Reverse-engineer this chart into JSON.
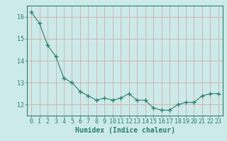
{
  "x": [
    0,
    1,
    2,
    3,
    4,
    5,
    6,
    7,
    8,
    9,
    10,
    11,
    12,
    13,
    14,
    15,
    16,
    17,
    18,
    19,
    20,
    21,
    22,
    23
  ],
  "y": [
    16.2,
    15.7,
    14.7,
    14.2,
    13.2,
    13.0,
    12.6,
    12.4,
    12.2,
    12.3,
    12.2,
    12.3,
    12.5,
    12.2,
    12.2,
    11.85,
    11.75,
    11.75,
    12.0,
    12.1,
    12.1,
    12.4,
    12.5,
    12.5
  ],
  "xlabel": "Humidex (Indice chaleur)",
  "xlim": [
    -0.5,
    23.5
  ],
  "ylim": [
    11.5,
    16.5
  ],
  "yticks": [
    12,
    13,
    14,
    15,
    16
  ],
  "xticks": [
    0,
    1,
    2,
    3,
    4,
    5,
    6,
    7,
    8,
    9,
    10,
    11,
    12,
    13,
    14,
    15,
    16,
    17,
    18,
    19,
    20,
    21,
    22,
    23
  ],
  "line_color": "#2e7d6e",
  "marker_color": "#2e7d6e",
  "bg_color": "#cceaea",
  "grid_color": "#d4a0a0",
  "tick_color": "#2e7d6e",
  "label_color": "#2e7d6e",
  "font_size": 6,
  "xlabel_fontsize": 7
}
